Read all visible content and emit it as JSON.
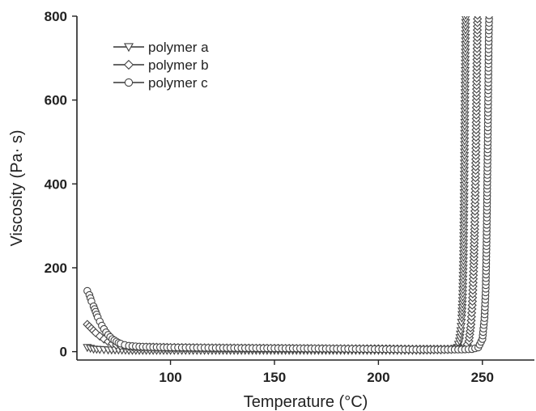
{
  "chart_data": {
    "type": "line",
    "title": "",
    "xlabel": "Temperature (°C)",
    "ylabel": "Viscosity (Pa· s)",
    "xlim": [
      55,
      275
    ],
    "ylim": [
      -20,
      800
    ],
    "xticks": [
      100,
      150,
      200,
      250
    ],
    "yticks": [
      0,
      200,
      400,
      600,
      800
    ],
    "grid": false,
    "legend_position": "top-left",
    "colors": {
      "line": "#333333",
      "marker_edge": "#444444",
      "axis": "#222222"
    },
    "series": [
      {
        "name": "polymer a",
        "marker": "triangle-down",
        "x": [
          60,
          63,
          66,
          70,
          75,
          80,
          90,
          100,
          120,
          150,
          180,
          200,
          220,
          230,
          235,
          238,
          239,
          239.6,
          240.1,
          240.5,
          240.9,
          241.2,
          241.6,
          242.0
        ],
        "y": [
          10,
          6,
          5,
          4,
          4,
          3,
          3,
          3,
          3,
          3,
          3,
          3,
          3,
          4,
          5,
          10,
          25,
          50,
          80,
          130,
          225,
          370,
          600,
          820
        ]
      },
      {
        "name": "polymer b",
        "marker": "diamond",
        "x": [
          60,
          62,
          64,
          66,
          68,
          70,
          72,
          74,
          76,
          78,
          80,
          85,
          90,
          100,
          120,
          150,
          180,
          200,
          220,
          235,
          240,
          242,
          243.5,
          244.5,
          245.2,
          245.8,
          246.3,
          246.8,
          247.3,
          247.7
        ],
        "y": [
          65,
          55,
          45,
          37,
          30,
          24,
          19,
          16,
          14,
          13,
          12,
          11,
          11,
          10,
          9,
          8,
          7,
          7,
          6,
          6,
          7,
          10,
          25,
          65,
          120,
          200,
          300,
          450,
          670,
          820
        ]
      },
      {
        "name": "polymer c",
        "marker": "circle",
        "x": [
          60,
          61,
          62,
          63,
          64,
          65,
          66,
          67,
          68,
          69,
          70,
          71,
          72,
          73,
          74,
          75,
          76,
          78,
          80,
          85,
          90,
          100,
          120,
          150,
          180,
          200,
          220,
          235,
          240,
          245,
          248,
          250,
          251,
          251.6,
          252.0,
          252.4,
          252.7,
          253.0,
          253.3
        ],
        "y": [
          145,
          135,
          120,
          108,
          95,
          82,
          72,
          62,
          54,
          46,
          40,
          35,
          30,
          27,
          24,
          21,
          19,
          16,
          14,
          12,
          11,
          10,
          9,
          8,
          7,
          6,
          5,
          5,
          5,
          6,
          10,
          30,
          80,
          150,
          260,
          430,
          570,
          730,
          820
        ]
      }
    ]
  }
}
